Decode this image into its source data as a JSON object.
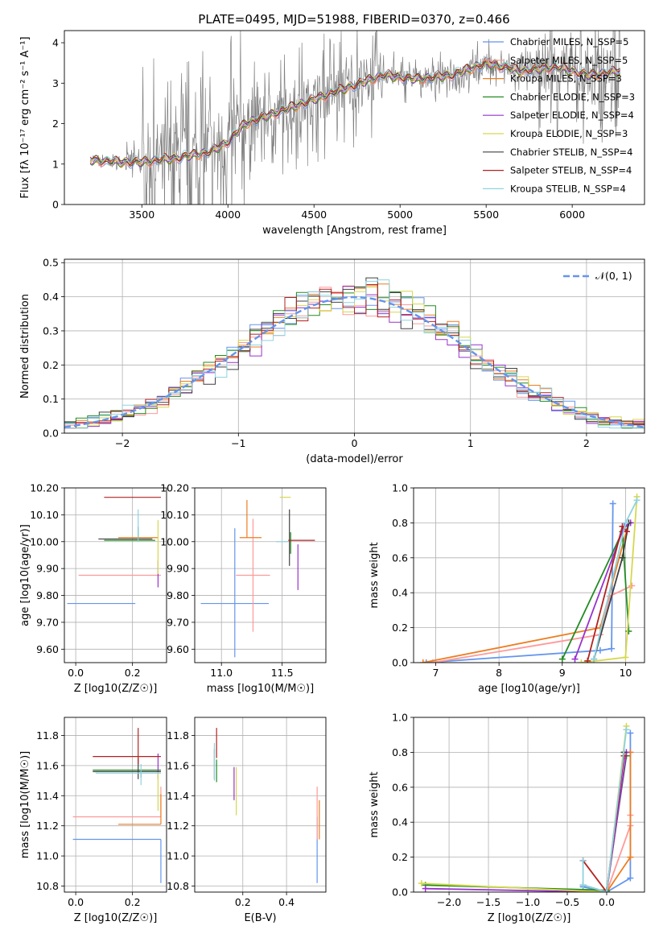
{
  "title": "PLATE=0495, MJD=51988, FIBERID=0370, z=0.466",
  "palette": [
    "#6495ed",
    "#ff9999",
    "#ed7d22",
    "#228b22",
    "#9932cc",
    "#d6d84d",
    "#404040",
    "#b22222",
    "#8fd3e0"
  ],
  "chart_data": [
    {
      "type": "line",
      "name": "spectrum",
      "xlabel": "wavelength [Angstrom, rest frame]",
      "ylabel": "Flux [fλ 10⁻¹⁷ erg cm⁻² s⁻¹ A⁻¹]",
      "xlim": [
        3050,
        6420
      ],
      "ylim": [
        0,
        4.3
      ],
      "xticks": [
        3500,
        4000,
        4500,
        5000,
        5500,
        6000
      ],
      "yticks": [
        0,
        1,
        2,
        3,
        4
      ],
      "data_color": "#808080",
      "model_continuum": {
        "x": [
          3200,
          3350,
          3500,
          3700,
          3900,
          4000,
          4100,
          4300,
          4500,
          4700,
          4900,
          5100,
          5300,
          5500,
          5700,
          5900,
          6100,
          6280
        ],
        "y": [
          1.1,
          1.05,
          1.05,
          1.15,
          1.3,
          1.55,
          2.0,
          2.3,
          2.6,
          2.9,
          3.2,
          3.1,
          3.2,
          3.5,
          3.3,
          3.4,
          3.2,
          3.3
        ]
      },
      "legend": [
        "Chabrier MILES, N_SSP=5",
        "Salpeter MILES, N_SSP=5",
        "Kroupa MILES, N_SSP=3",
        "Chabrier ELODIE, N_SSP=3",
        "Salpeter ELODIE, N_SSP=4",
        "Kroupa ELODIE, N_SSP=3",
        "Chabrier STELIB, N_SSP=4",
        "Salpeter STELIB, N_SSP=4",
        "Kroupa STELIB, N_SSP=4"
      ],
      "legend_placement": "top-right",
      "grid": false
    },
    {
      "type": "histogram",
      "name": "residuals",
      "xlabel": "(data-model)/error",
      "ylabel": "Normed distribution",
      "xlim": [
        -2.5,
        2.5
      ],
      "ylim": [
        0,
        0.51
      ],
      "xticks": [
        -2,
        -1,
        0,
        1,
        2
      ],
      "yticks": [
        0.0,
        0.1,
        0.2,
        0.3,
        0.4,
        0.5
      ],
      "bin_width": 0.1,
      "reference_label": "𝒩(0, 1)",
      "reference_color": "#6495ed",
      "legend_placement": "top-right",
      "grid": true
    },
    {
      "type": "errorbar",
      "name": "age-vs-Z",
      "xlabel": "Z [log10(Z/Z☉)]",
      "ylabel": "age  [log10(age/yr)]",
      "xlim": [
        -0.04,
        0.32
      ],
      "ylim": [
        9.55,
        10.2
      ],
      "xticks": [
        0.0,
        0.2
      ],
      "yticks": [
        9.6,
        9.7,
        9.8,
        9.9,
        10.0,
        10.1,
        10.2
      ],
      "points": [
        {
          "x": 0.2,
          "xerr": [
            0.23,
            0.01
          ],
          "y": 9.77,
          "yerr": [
            0.0,
            0.0
          ]
        },
        {
          "x": 0.3,
          "xerr": [
            0.29,
            0.0
          ],
          "y": 9.875,
          "yerr": [
            0.0,
            0.0
          ]
        },
        {
          "x": 0.25,
          "xerr": [
            0.1,
            0.04
          ],
          "y": 10.015,
          "yerr": [
            0.0,
            0.0
          ]
        },
        {
          "x": 0.22,
          "xerr": [
            0.12,
            0.06
          ],
          "y": 10.005,
          "yerr": [
            0.0,
            0.05
          ]
        },
        {
          "x": 0.29,
          "xerr": [
            0.0,
            0.0
          ],
          "y": 9.88,
          "yerr": [
            0.05,
            0.05
          ]
        },
        {
          "x": 0.29,
          "xerr": [
            0.0,
            0.0
          ],
          "y": 10.0,
          "yerr": [
            0.12,
            0.08
          ]
        },
        {
          "x": 0.22,
          "xerr": [
            0.14,
            0.05
          ],
          "y": 10.01,
          "yerr": [
            0.0,
            0.0
          ]
        },
        {
          "x": 0.23,
          "xerr": [
            0.13,
            0.07
          ],
          "y": 10.165,
          "yerr": [
            0.0,
            0.0
          ]
        },
        {
          "x": 0.22,
          "xerr": [
            0.0,
            0.0
          ],
          "y": 10.05,
          "yerr": [
            0.05,
            0.07
          ]
        }
      ],
      "grid": true
    },
    {
      "type": "errorbar",
      "name": "age-vs-mass",
      "xlabel": "mass [log10(M/M☉)]",
      "ylabel": "",
      "xlim": [
        10.78,
        11.86
      ],
      "ylim": [
        9.55,
        10.2
      ],
      "xticks": [
        11.0,
        11.5
      ],
      "yticks": [
        9.6,
        9.7,
        9.8,
        9.9,
        10.0,
        10.1,
        10.2
      ],
      "points": [
        {
          "x": 11.11,
          "xerr": [
            0.28,
            0.28
          ],
          "y": 9.77,
          "yerr": [
            0.2,
            0.28
          ]
        },
        {
          "x": 11.26,
          "xerr": [
            0.14,
            0.14
          ],
          "y": 9.875,
          "yerr": [
            0.21,
            0.21
          ]
        },
        {
          "x": 11.21,
          "xerr": [
            0.06,
            0.12
          ],
          "y": 10.015,
          "yerr": [
            0.0,
            0.14
          ]
        },
        {
          "x": 11.57,
          "xerr": [
            0.0,
            0.0
          ],
          "y": 10.005,
          "yerr": [
            0.05,
            0.03
          ]
        },
        {
          "x": 11.63,
          "xerr": [
            0.0,
            0.0
          ],
          "y": 9.88,
          "yerr": [
            0.06,
            0.11
          ]
        },
        {
          "x": 11.57,
          "xerr": [
            0.09,
            0.0
          ],
          "y": 10.165,
          "yerr": [
            0.0,
            0.0
          ]
        },
        {
          "x": 11.56,
          "xerr": [
            0.0,
            0.0
          ],
          "y": 10.0,
          "yerr": [
            0.09,
            0.12
          ]
        },
        {
          "x": 11.66,
          "xerr": [
            0.11,
            0.11
          ],
          "y": 10.005,
          "yerr": [
            0.0,
            0.0
          ]
        },
        {
          "x": 11.55,
          "xerr": [
            0.1,
            0.0
          ],
          "y": 10.0,
          "yerr": [
            0.0,
            0.0
          ]
        }
      ],
      "grid": true
    },
    {
      "type": "line",
      "name": "weights-vs-age",
      "xlabel": "age  [log10(age/yr)]",
      "ylabel": "mass weight",
      "xlim": [
        6.65,
        10.3
      ],
      "ylim": [
        0,
        1.0
      ],
      "xticks": [
        7,
        8,
        9,
        10
      ],
      "yticks": [
        0.0,
        0.2,
        0.4,
        0.6,
        0.8,
        1.0
      ],
      "series": [
        {
          "x": [
            6.85,
            9.6,
            9.78,
            9.8
          ],
          "y": [
            0.0,
            0.07,
            0.08,
            0.91
          ]
        },
        {
          "x": [
            6.95,
            9.6,
            9.75,
            10.1
          ],
          "y": [
            0.0,
            0.16,
            0.38,
            0.44
          ]
        },
        {
          "x": [
            6.8,
            9.6,
            10.05
          ],
          "y": [
            0.0,
            0.2,
            0.8
          ]
        },
        {
          "x": [
            9.0,
            9.95,
            10.05
          ],
          "y": [
            0.02,
            0.75,
            0.18
          ]
        },
        {
          "x": [
            9.2,
            9.98,
            10.08
          ],
          "y": [
            0.02,
            0.78,
            0.8
          ]
        },
        {
          "x": [
            9.3,
            10.0,
            10.18
          ],
          "y": [
            0.0,
            0.03,
            0.95
          ]
        },
        {
          "x": [
            9.5,
            9.95,
            10.05
          ],
          "y": [
            0.02,
            0.6,
            0.8
          ]
        },
        {
          "x": [
            9.4,
            9.95,
            10.02
          ],
          "y": [
            0.01,
            0.78,
            0.75
          ]
        },
        {
          "x": [
            9.5,
            10.0,
            10.18
          ],
          "y": [
            0.02,
            0.8,
            0.93
          ]
        }
      ],
      "grid": true
    },
    {
      "type": "errorbar",
      "name": "mass-vs-Z",
      "xlabel": "Z [log10(Z/Z☉)]",
      "ylabel": "mass [log10(M/M☉)]",
      "xlim": [
        -0.04,
        0.32
      ],
      "ylim": [
        10.76,
        11.92
      ],
      "xticks": [
        0.0,
        0.2
      ],
      "yticks": [
        10.8,
        11.0,
        11.2,
        11.4,
        11.6,
        11.8
      ],
      "points": [
        {
          "x": 0.3,
          "xerr": [
            0.31,
            0.0
          ],
          "y": 11.11,
          "yerr": [
            0.29,
            0.0
          ]
        },
        {
          "x": 0.3,
          "xerr": [
            0.31,
            0.0
          ],
          "y": 11.26,
          "yerr": [
            0.0,
            0.2
          ]
        },
        {
          "x": 0.3,
          "xerr": [
            0.15,
            0.0
          ],
          "y": 11.21,
          "yerr": [
            0.0,
            0.2
          ]
        },
        {
          "x": 0.23,
          "xerr": [
            0.17,
            0.07
          ],
          "y": 11.57,
          "yerr": [
            0.05,
            0.0
          ]
        },
        {
          "x": 0.29,
          "xerr": [
            0.0,
            0.0
          ],
          "y": 11.59,
          "yerr": [
            0.08,
            0.09
          ]
        },
        {
          "x": 0.29,
          "xerr": [
            0.0,
            0.0
          ],
          "y": 11.5,
          "yerr": [
            0.2,
            0.06
          ]
        },
        {
          "x": 0.22,
          "xerr": [
            0.16,
            0.08
          ],
          "y": 11.56,
          "yerr": [
            0.05,
            0.09
          ]
        },
        {
          "x": 0.22,
          "xerr": [
            0.16,
            0.08
          ],
          "y": 11.66,
          "yerr": [
            0.05,
            0.19
          ]
        },
        {
          "x": 0.23,
          "xerr": [
            0.16,
            0.07
          ],
          "y": 11.55,
          "yerr": [
            0.08,
            0.06
          ]
        }
      ],
      "grid": true
    },
    {
      "type": "errorbar",
      "name": "mass-vs-EBV",
      "xlabel": "E(B-V)",
      "ylabel": "",
      "xlim": [
        -0.02,
        0.58
      ],
      "ylim": [
        10.76,
        11.92
      ],
      "xticks": [
        0.2,
        0.4
      ],
      "yticks": [
        10.8,
        11.0,
        11.2,
        11.4,
        11.6,
        11.8
      ],
      "points": [
        {
          "x": 0.54,
          "xerr": [
            0.0,
            0.0
          ],
          "y": 11.11,
          "yerr": [
            0.29,
            0.15
          ]
        },
        {
          "x": 0.54,
          "xerr": [
            0.0,
            0.0
          ],
          "y": 11.26,
          "yerr": [
            0.15,
            0.2
          ]
        },
        {
          "x": 0.55,
          "xerr": [
            0.0,
            0.0
          ],
          "y": 11.21,
          "yerr": [
            0.1,
            0.16
          ]
        },
        {
          "x": 0.08,
          "xerr": [
            0.0,
            0.0
          ],
          "y": 11.57,
          "yerr": [
            0.08,
            0.07
          ]
        },
        {
          "x": 0.16,
          "xerr": [
            0.0,
            0.0
          ],
          "y": 11.49,
          "yerr": [
            0.12,
            0.1
          ]
        },
        {
          "x": 0.17,
          "xerr": [
            0.0,
            0.0
          ],
          "y": 11.45,
          "yerr": [
            0.18,
            0.14
          ]
        },
        {
          "x": 0.07,
          "xerr": [
            0.0,
            0.0
          ],
          "y": 11.63,
          "yerr": [
            0.12,
            0.08
          ]
        },
        {
          "x": 0.08,
          "xerr": [
            0.0,
            0.0
          ],
          "y": 11.75,
          "yerr": [
            0.1,
            0.1
          ]
        },
        {
          "x": 0.07,
          "xerr": [
            0.0,
            0.0
          ],
          "y": 11.62,
          "yerr": [
            0.12,
            0.13
          ]
        }
      ],
      "grid": true
    },
    {
      "type": "line",
      "name": "weights-vs-Z",
      "xlabel": "Z [log10(Z/Z☉)]",
      "ylabel": "mass weight",
      "xlim": [
        -2.45,
        0.48
      ],
      "ylim": [
        0,
        1.0
      ],
      "xticks": [
        -2.0,
        -1.5,
        -1.0,
        -0.5,
        0.0
      ],
      "yticks": [
        0.0,
        0.2,
        0.4,
        0.6,
        0.8,
        1.0
      ],
      "series": [
        {
          "x": [
            -0.3,
            0.0,
            0.3,
            0.3
          ],
          "y": [
            0.03,
            0.0,
            0.08,
            0.91
          ]
        },
        {
          "x": [
            -0.3,
            0.0,
            0.3,
            0.3
          ],
          "y": [
            0.0,
            0.0,
            0.38,
            0.44
          ]
        },
        {
          "x": [
            0.0,
            0.3,
            0.3
          ],
          "y": [
            0.0,
            0.2,
            0.8
          ]
        },
        {
          "x": [
            -2.3,
            0.0,
            0.25
          ],
          "y": [
            0.04,
            0.01,
            0.78
          ]
        },
        {
          "x": [
            -2.3,
            0.0,
            0.25
          ],
          "y": [
            0.02,
            0.0,
            0.8
          ]
        },
        {
          "x": [
            -2.35,
            0.0,
            0.25
          ],
          "y": [
            0.05,
            0.0,
            0.95
          ]
        },
        {
          "x": [
            -0.3,
            0.0,
            0.22
          ],
          "y": [
            0.04,
            0.0,
            0.8
          ]
        },
        {
          "x": [
            -0.3,
            0.0,
            0.22
          ],
          "y": [
            0.18,
            0.0,
            0.78
          ]
        },
        {
          "x": [
            -0.3,
            -0.3,
            0.0,
            0.25
          ],
          "y": [
            0.18,
            0.04,
            0.0,
            0.93
          ]
        }
      ],
      "grid": true
    }
  ]
}
